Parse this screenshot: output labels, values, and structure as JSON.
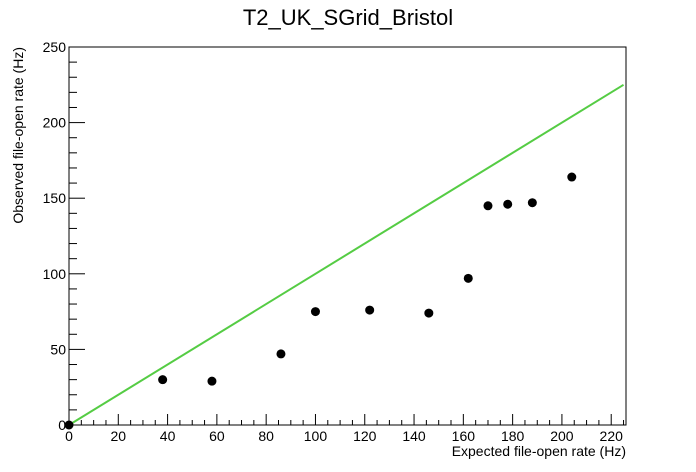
{
  "chart_data": {
    "type": "scatter",
    "title": "T2_UK_SGrid_Bristol",
    "xlabel": "Expected file-open rate (Hz)",
    "ylabel": "Observed file-open rate (Hz)",
    "xlim": [
      0,
      226
    ],
    "ylim": [
      0,
      250
    ],
    "x_ticks": [
      "0",
      "20",
      "40",
      "60",
      "80",
      "100",
      "120",
      "140",
      "160",
      "180",
      "200",
      "220"
    ],
    "y_ticks": [
      "0",
      "50",
      "100",
      "150",
      "200",
      "250"
    ],
    "grid": false,
    "series": [
      {
        "type": "scatter",
        "color": "#000000",
        "points": [
          [
            0,
            0
          ],
          [
            38,
            30
          ],
          [
            58,
            29
          ],
          [
            86,
            47
          ],
          [
            100,
            75
          ],
          [
            122,
            76
          ],
          [
            146,
            74
          ],
          [
            162,
            97
          ],
          [
            170,
            145
          ],
          [
            178,
            146
          ],
          [
            188,
            147
          ],
          [
            204,
            164
          ]
        ]
      },
      {
        "type": "line",
        "color": "#55cc44",
        "points": [
          [
            0,
            0
          ],
          [
            225,
            225
          ]
        ]
      }
    ]
  }
}
